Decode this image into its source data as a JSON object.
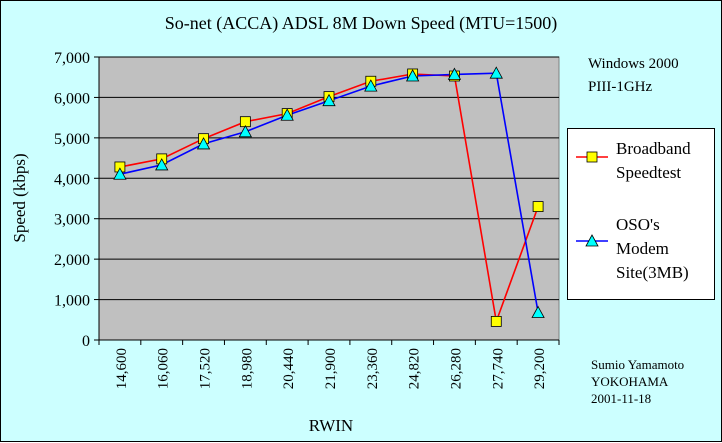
{
  "chart_data": {
    "type": "line",
    "title": "So-net (ACCA) ADSL 8M Down Speed  (MTU=1500)",
    "xlabel": "RWIN",
    "ylabel": "Speed (kbps)",
    "categories": [
      "14,600",
      "16,060",
      "17,520",
      "18,980",
      "20,440",
      "21,900",
      "23,360",
      "24,820",
      "26,280",
      "27,740",
      "29,200"
    ],
    "ylim": [
      0,
      7000
    ],
    "ytick_step": 1000,
    "ytick_labels": [
      "0",
      "1,000",
      "2,000",
      "3,000",
      "4,000",
      "5,000",
      "6,000",
      "7,000"
    ],
    "grid": "horizontal",
    "legend_position": "right",
    "series": [
      {
        "name": "Broadband Speedtest",
        "color": "#ff0000",
        "marker": "square",
        "marker_color": "#ffff00",
        "values": [
          4280,
          4480,
          4980,
          5400,
          5600,
          6020,
          6400,
          6580,
          6530,
          460,
          3300
        ]
      },
      {
        "name": "OSO's Modem Site(3MB)",
        "color": "#0000ff",
        "marker": "triangle",
        "marker_color": "#00ffff",
        "values": [
          4100,
          4330,
          4850,
          5150,
          5560,
          5920,
          6280,
          6530,
          6570,
          6600,
          680
        ]
      }
    ],
    "plot_background": "#c0c0c0"
  },
  "notes": {
    "line1": "Windows 2000",
    "line2": "PIII-1GHz"
  },
  "credit": {
    "name": "Sumio Yamamoto",
    "place": "YOKOHAMA",
    "date": "2001-11-18"
  },
  "legend": {
    "item1_line1": "Broadband",
    "item1_line2": "Speedtest",
    "item2_line1": "OSO's",
    "item2_line2": "Modem",
    "item2_line3": "Site(3MB)"
  }
}
